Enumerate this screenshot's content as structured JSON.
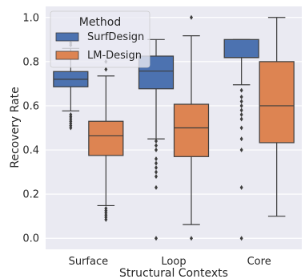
{
  "chart_data": {
    "type": "box",
    "xlabel": "Structural Contexts",
    "ylabel": "Recovery Rate",
    "ylim": [
      -0.05,
      1.05
    ],
    "y_ticks": [
      "0.0",
      "0.2",
      "0.4",
      "0.6",
      "0.8",
      "1.0"
    ],
    "categories": [
      "Surface",
      "Loop",
      "Core"
    ],
    "grid": true,
    "legend": {
      "title": "Method",
      "position": "top-left"
    },
    "series": [
      {
        "name": "SurfDesign",
        "color": "#4c72b0",
        "boxes": [
          {
            "q1": 0.686,
            "median": 0.72,
            "q3": 0.755,
            "whisker_low": 0.577,
            "whisker_high": 0.86,
            "outliers": [
              0.56,
              0.55,
              0.54,
              0.53,
              0.52,
              0.51,
              0.5,
              0.875,
              0.885
            ]
          },
          {
            "q1": 0.677,
            "median": 0.757,
            "q3": 0.825,
            "whisker_low": 0.45,
            "whisker_high": 0.9,
            "outliers": [
              0.44,
              0.42,
              0.4,
              0.36,
              0.34,
              0.32,
              0.3,
              0.28,
              0.23,
              0.0
            ]
          },
          {
            "q1": 0.818,
            "median": 0.818,
            "q3": 0.9,
            "whisker_low": 0.695,
            "whisker_high": 0.9,
            "outliers": [
              0.67,
              0.64,
              0.62,
              0.6,
              0.58,
              0.56,
              0.54,
              0.5,
              0.45,
              0.4,
              0.23,
              0.0
            ]
          }
        ]
      },
      {
        "name": "LM-Design",
        "color": "#dd8452",
        "boxes": [
          {
            "q1": 0.375,
            "median": 0.464,
            "q3": 0.53,
            "whisker_low": 0.148,
            "whisker_high": 0.735,
            "outliers": [
              0.135,
              0.125,
              0.115,
              0.105,
              0.095,
              0.085,
              0.765,
              0.8
            ]
          },
          {
            "q1": 0.37,
            "median": 0.5,
            "q3": 0.607,
            "whisker_low": 0.062,
            "whisker_high": 0.917,
            "outliers": [
              0.0,
              1.0
            ]
          },
          {
            "q1": 0.433,
            "median": 0.6,
            "q3": 0.8,
            "whisker_low": 0.1,
            "whisker_high": 1.0,
            "outliers": []
          }
        ]
      }
    ]
  }
}
